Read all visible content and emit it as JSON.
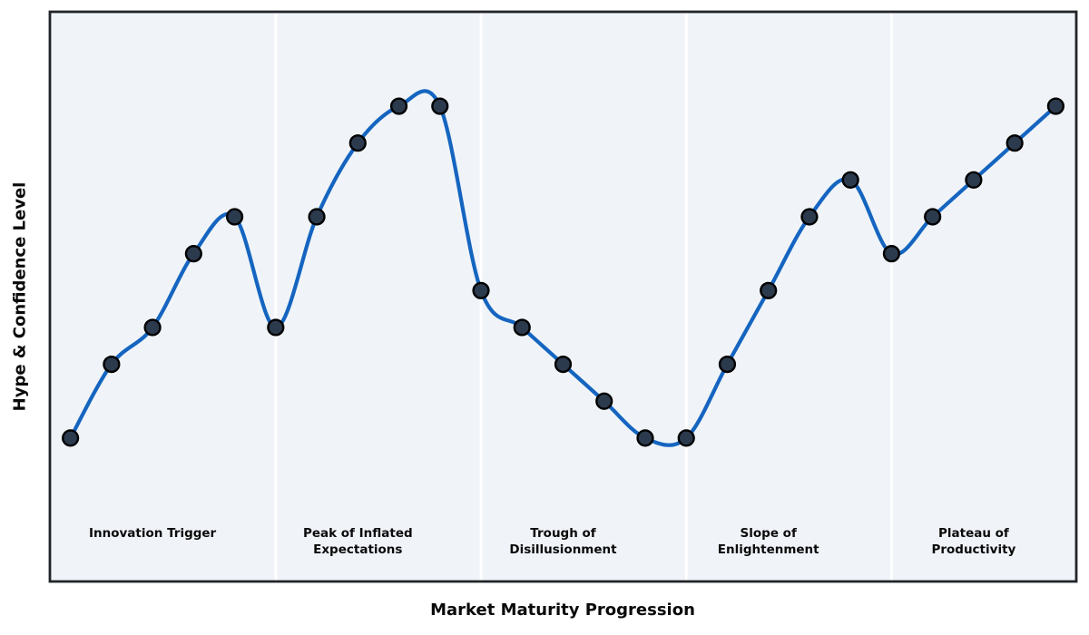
{
  "chart_data": {
    "type": "line",
    "title": "",
    "xlabel": "Market Maturity Progression",
    "ylabel": "Hype & Confidence Level",
    "x": [
      0,
      1,
      2,
      3,
      4,
      5,
      6,
      7,
      8,
      9,
      10,
      11,
      12,
      13,
      14,
      15,
      16,
      17,
      18,
      19,
      20,
      21,
      22,
      23,
      24
    ],
    "series": [
      {
        "name": "hype-confidence-curve",
        "values": [
          10,
          30,
          40,
          60,
          70,
          40,
          70,
          90,
          100,
          100,
          50,
          40,
          30,
          20,
          10,
          10,
          30,
          50,
          70,
          80,
          60,
          70,
          80,
          90,
          100
        ]
      }
    ],
    "smoothing": "spline",
    "grid": false,
    "legend": "none",
    "axis_ticks": "none",
    "xlim": [
      -0.5,
      24.5
    ],
    "ylim": [
      -28.9,
      125.6
    ],
    "phase_boundaries_x": [
      5,
      10,
      15,
      20
    ],
    "phases": [
      {
        "label_lines": [
          "Innovation Trigger"
        ],
        "center_x": 2
      },
      {
        "label_lines": [
          "Peak of Inflated",
          "Expectations"
        ],
        "center_x": 7
      },
      {
        "label_lines": [
          "Trough of",
          "Disillusionment"
        ],
        "center_x": 12
      },
      {
        "label_lines": [
          "Slope of",
          "Enlightenment"
        ],
        "center_x": 17
      },
      {
        "label_lines": [
          "Plateau of",
          "Productivity"
        ],
        "center_x": 22
      }
    ]
  },
  "style": {
    "line_color": "#1565c0",
    "line_width": 4.2,
    "marker_fill": "#2c3a4d",
    "marker_edge": "#000000",
    "marker_radius": 8.4,
    "plot_background": "#f0f4f8",
    "border_color": "#212529",
    "divider_color": "#ffffff",
    "text_color": "#0a0a0a",
    "figure_background": "#ffffff"
  }
}
